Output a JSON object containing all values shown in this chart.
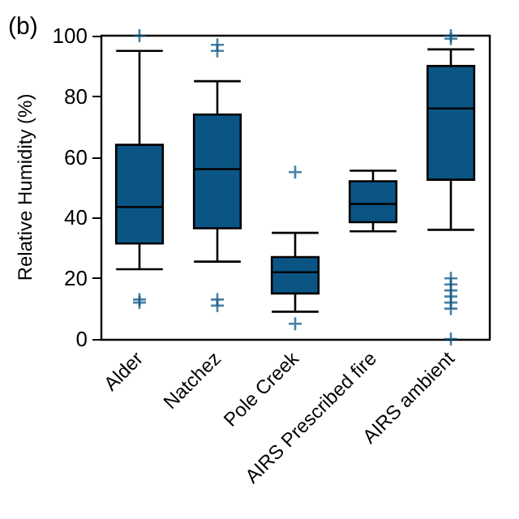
{
  "chart_data": {
    "type": "box",
    "title": "(b)",
    "ylabel": "Relative Humidity (%)",
    "categories": [
      "Alder",
      "Natchez",
      "Pole Creek",
      "AIRS Prescribed fire",
      "AIRS ambient"
    ],
    "color": "#0b5585",
    "marker": "cross",
    "grid": false,
    "ylim": [
      0,
      100
    ],
    "yticks": [
      0,
      20,
      40,
      60,
      80,
      100
    ],
    "boxes": [
      {
        "low": 23,
        "q1": 31.5,
        "median": 43.5,
        "q3": 64,
        "high": 95,
        "outliers": [
          100,
          13,
          12
        ]
      },
      {
        "low": 25.5,
        "q1": 36.5,
        "median": 56,
        "q3": 74,
        "high": 85,
        "outliers": [
          97,
          95,
          13,
          11
        ]
      },
      {
        "low": 9,
        "q1": 15,
        "median": 22,
        "q3": 27,
        "high": 35,
        "outliers": [
          55,
          5
        ]
      },
      {
        "low": 35.5,
        "q1": 38.5,
        "median": 44.5,
        "q3": 52,
        "high": 55.5
      },
      {
        "low": 36,
        "q1": 52.5,
        "median": 76,
        "q3": 90,
        "high": 95.5,
        "outliers": [
          100,
          99,
          20,
          18,
          16,
          14,
          12,
          10,
          0
        ]
      }
    ]
  }
}
